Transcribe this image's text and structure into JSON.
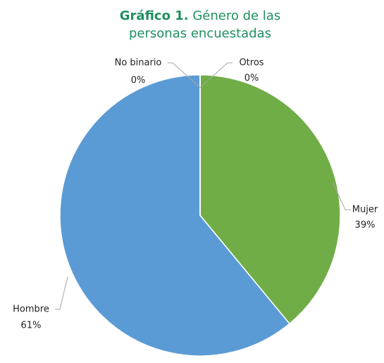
{
  "chart_data": {
    "type": "pie",
    "title_lead": "Gráfico 1.",
    "title": "Género de las personas encuestadas",
    "categories": [
      "Mujer",
      "Hombre",
      "No binario",
      "Otros"
    ],
    "values": [
      39,
      61,
      0,
      0
    ],
    "value_labels": [
      "39%",
      "61%",
      "0%",
      "0%"
    ],
    "colors": [
      "#70ad47",
      "#5b9bd5",
      "#a5a5a5",
      "#ffc000"
    ],
    "title_color": "#1f9060"
  }
}
